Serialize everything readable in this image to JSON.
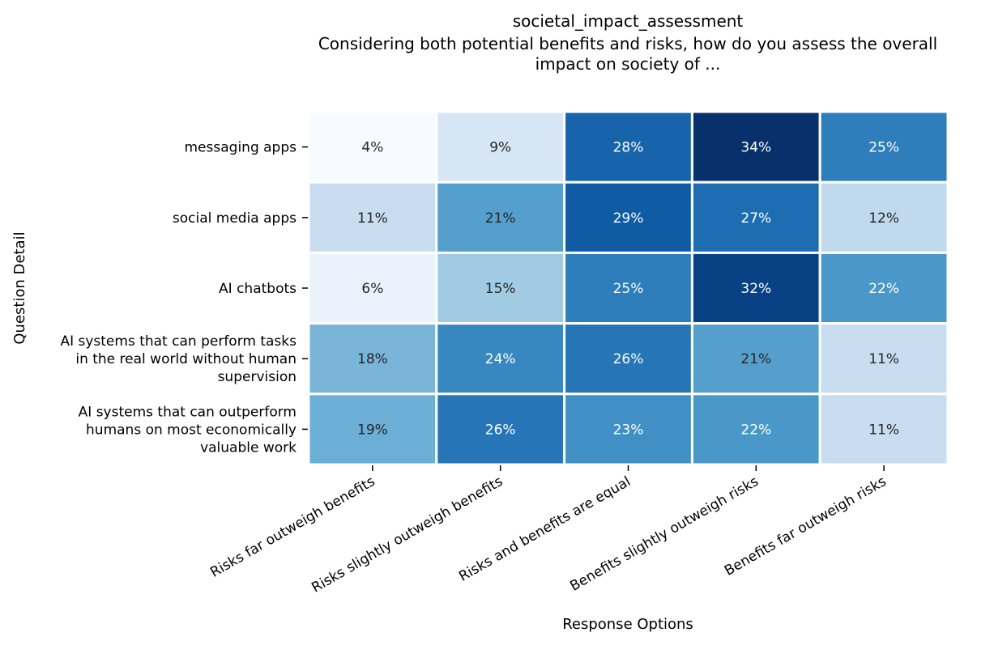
{
  "chart_data": {
    "type": "heatmap",
    "title": "societal_impact_assessment",
    "subtitle_lines": [
      "Considering both potential benefits and risks, how do you assess the overall",
      "impact on society of ..."
    ],
    "xlabel": "Response Options",
    "ylabel": "Question Detail",
    "x_categories": [
      "Risks far outweigh benefits",
      "Risks slightly outweigh benefits",
      "Risks and benefits are equal",
      "Benefits slightly outweigh risks",
      "Benefits far outweigh risks"
    ],
    "y_categories": [
      [
        "messaging apps"
      ],
      [
        "social media apps"
      ],
      [
        "AI chatbots"
      ],
      [
        "AI systems that can perform tasks",
        "in the real world without human",
        "supervision"
      ],
      [
        "AI systems that can outperform",
        "humans on most economically",
        "valuable work"
      ]
    ],
    "values": [
      [
        4,
        9,
        28,
        34,
        25
      ],
      [
        11,
        21,
        29,
        27,
        12
      ],
      [
        6,
        15,
        25,
        32,
        22
      ],
      [
        18,
        24,
        26,
        21,
        11
      ],
      [
        19,
        26,
        23,
        22,
        11
      ]
    ],
    "value_format": "{v}%",
    "colormap": "Blues",
    "vmin": 4,
    "vmax": 34,
    "grid": false
  }
}
